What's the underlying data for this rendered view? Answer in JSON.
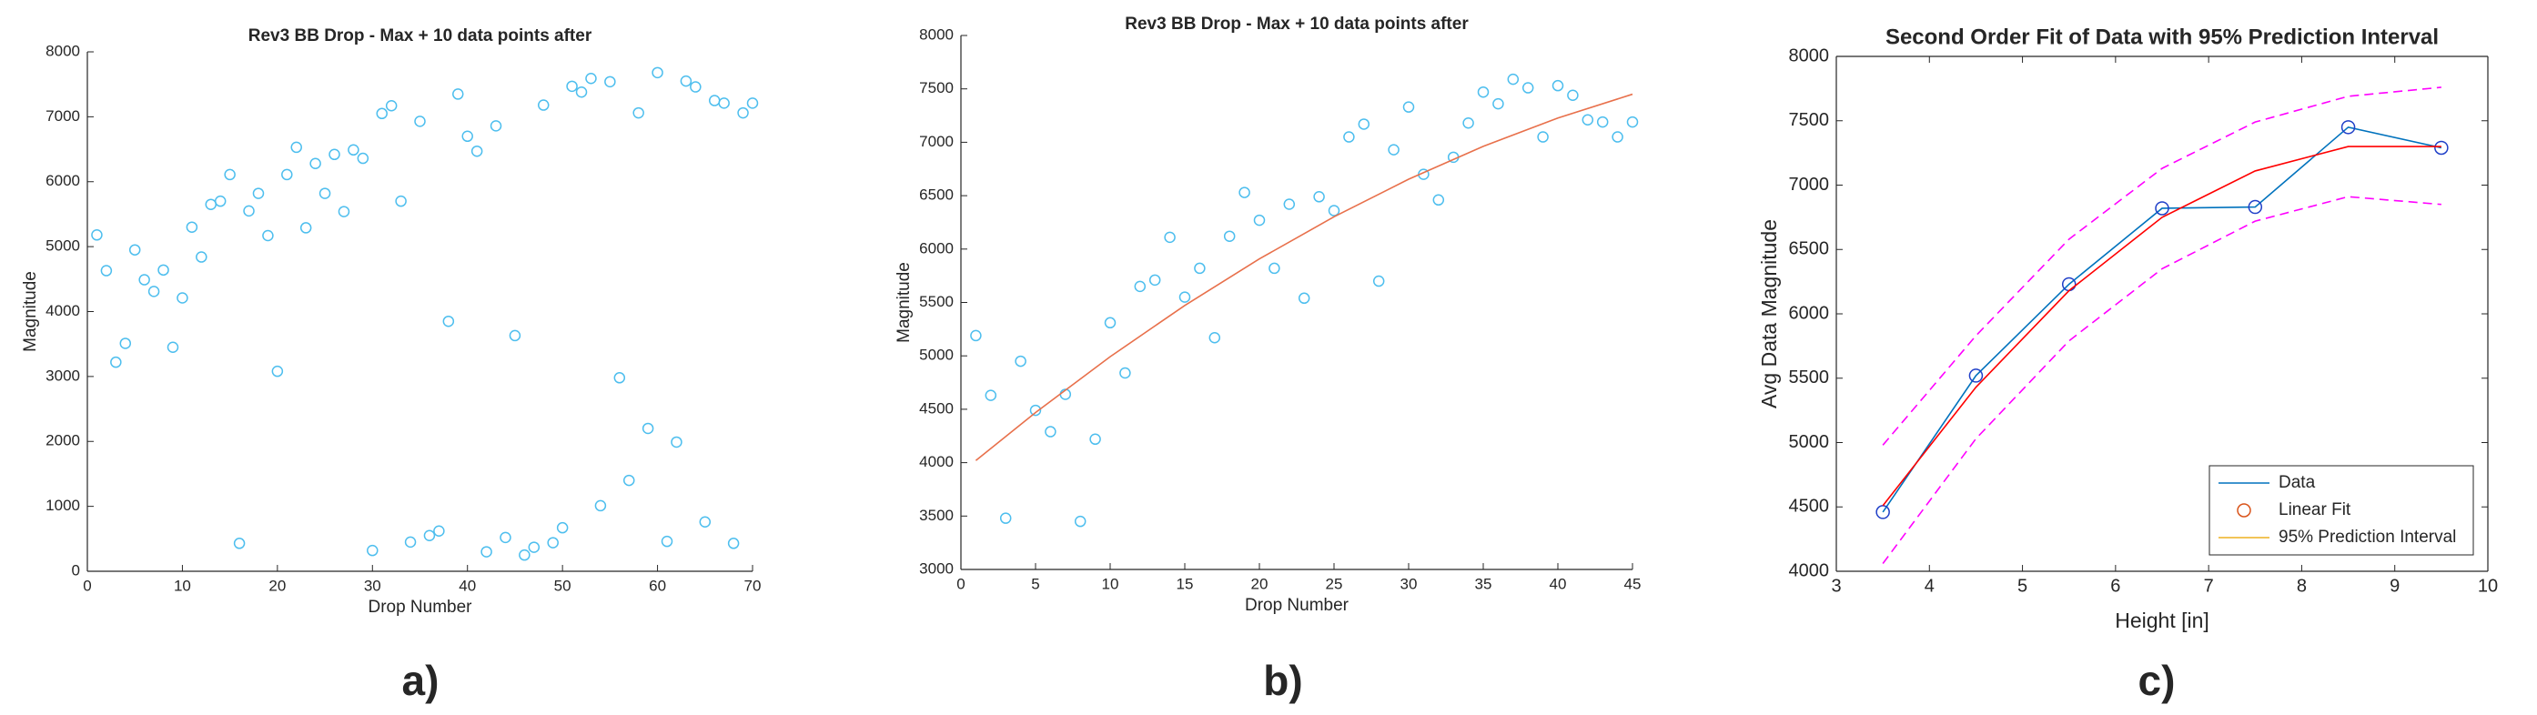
{
  "chart_data": [
    {
      "type": "scatter",
      "title": "Rev3 BB Drop - Max + 10 data points after",
      "xlabel": "Drop Number",
      "ylabel": "Magnitude",
      "caption": "a)",
      "xlim": [
        0,
        70
      ],
      "ylim": [
        0,
        8000
      ],
      "xticks": [
        0,
        10,
        20,
        30,
        40,
        50,
        60,
        70
      ],
      "yticks": [
        0,
        1000,
        2000,
        3000,
        4000,
        5000,
        6000,
        7000,
        8000
      ],
      "grid": false,
      "box": false,
      "series": [
        {
          "style": "markers",
          "color": "#4dbeee",
          "x": [
            1,
            2,
            3,
            4,
            5,
            6,
            7,
            8,
            9,
            10,
            11,
            12,
            13,
            14,
            15,
            16,
            17,
            18,
            19,
            20,
            21,
            22,
            23,
            24,
            25,
            26,
            27,
            28,
            29,
            30,
            31,
            32,
            33,
            34,
            35,
            36,
            37,
            38,
            39,
            40,
            41,
            42,
            43,
            44,
            45,
            46,
            47,
            48,
            49,
            50,
            51,
            52,
            53,
            54,
            55,
            56,
            57,
            58,
            59,
            60,
            61,
            62,
            63,
            64,
            65,
            66,
            67,
            68,
            69,
            70
          ],
          "values": [
            5180,
            4630,
            3220,
            3510,
            4950,
            4490,
            4310,
            4640,
            3450,
            4210,
            5300,
            4840,
            5650,
            5700,
            6110,
            430,
            5550,
            5820,
            5170,
            3080,
            6110,
            6530,
            5290,
            6280,
            5820,
            6420,
            5540,
            6490,
            6360,
            320,
            7050,
            7170,
            5700,
            450,
            6930,
            550,
            620,
            3850,
            7350,
            6700,
            6470,
            300,
            6860,
            520,
            3630,
            250,
            370,
            7180,
            440,
            670,
            7470,
            7380,
            7590,
            1010,
            7540,
            2980,
            1400,
            7060,
            2200,
            7680,
            460,
            1990,
            7550,
            7460,
            760,
            7250,
            7210,
            430,
            7060,
            7210
          ]
        }
      ]
    },
    {
      "type": "scatter",
      "title": "Rev3 BB Drop - Max + 10 data points after",
      "xlabel": "Drop Number",
      "ylabel": "Magnitude",
      "caption": "b)",
      "xlim": [
        0,
        45
      ],
      "ylim": [
        3000,
        8000
      ],
      "xticks": [
        0,
        5,
        10,
        15,
        20,
        25,
        30,
        35,
        40,
        45
      ],
      "yticks": [
        3000,
        3500,
        4000,
        4500,
        5000,
        5500,
        6000,
        6500,
        7000,
        7500,
        8000
      ],
      "grid": false,
      "box": false,
      "series": [
        {
          "style": "markers",
          "color": "#4dbeee",
          "x": [
            1,
            2,
            3,
            4,
            5,
            6,
            7,
            8,
            9,
            10,
            11,
            12,
            13,
            14,
            15,
            16,
            17,
            18,
            19,
            20,
            21,
            22,
            23,
            24,
            25,
            26,
            27,
            28,
            29,
            30,
            31,
            32,
            33,
            34,
            35,
            36,
            37,
            38,
            39,
            40,
            41,
            42,
            43,
            44,
            45
          ],
          "values": [
            5190,
            4630,
            3480,
            4950,
            4490,
            4290,
            4640,
            3450,
            4220,
            5310,
            4840,
            5650,
            5710,
            6110,
            5550,
            5820,
            5170,
            6120,
            6530,
            6270,
            5820,
            6420,
            5540,
            6490,
            6360,
            7050,
            7170,
            5700,
            6930,
            7330,
            6700,
            6460,
            6860,
            7180,
            7470,
            7360,
            7590,
            7510,
            7050,
            7530,
            7440,
            7210,
            7190,
            7050,
            7190
          ]
        },
        {
          "style": "line",
          "color": "#e8704b",
          "x": [
            1,
            5,
            10,
            15,
            20,
            25,
            30,
            35,
            40,
            45
          ],
          "values": [
            4020,
            4469,
            4992,
            5472,
            5908,
            6302,
            6654,
            6962,
            7227,
            7450
          ]
        }
      ]
    },
    {
      "type": "line",
      "title": "Second Order Fit of Data with 95% Prediction Interval",
      "xlabel": "Height [in]",
      "ylabel": "Avg Data Magnitude",
      "caption": "c)",
      "xlim": [
        3,
        10
      ],
      "ylim": [
        4000,
        8000
      ],
      "xticks": [
        3,
        4,
        5,
        6,
        7,
        8,
        9,
        10
      ],
      "yticks": [
        4000,
        4500,
        5000,
        5500,
        6000,
        6500,
        7000,
        7500,
        8000
      ],
      "grid": false,
      "box": true,
      "legend": "lower right",
      "series": [
        {
          "name": "Data",
          "style": "line+markers",
          "color": "#0072bd",
          "marker_color": "#1f3fc8",
          "legend_style": "line",
          "legend_color": "#0072bd",
          "x": [
            3.5,
            4.5,
            5.5,
            6.5,
            7.5,
            8.5,
            9.5
          ],
          "values": [
            4460,
            5520,
            6230,
            6820,
            6830,
            7450,
            7290
          ]
        },
        {
          "name": "Linear Fit",
          "style": "line",
          "color": "#ff0000",
          "legend_style": "marker",
          "legend_color": "#d95319",
          "x": [
            3.5,
            4.5,
            5.5,
            6.5,
            7.5,
            8.5,
            9.5
          ],
          "values": [
            4510,
            5430,
            6180,
            6750,
            7110,
            7300,
            7300
          ]
        },
        {
          "name": "95% Prediction Interval",
          "style": "dashed",
          "color": "#ff00ff",
          "legend_style": "line",
          "legend_color": "#edb120",
          "x": [
            3.5,
            4.5,
            5.5,
            6.5,
            7.5,
            8.5,
            9.5
          ],
          "values": [
            4980,
            5830,
            6580,
            7130,
            7490,
            7690,
            7760
          ],
          "lower": [
            4060,
            5030,
            5790,
            6350,
            6720,
            6910,
            6850
          ]
        }
      ]
    }
  ]
}
